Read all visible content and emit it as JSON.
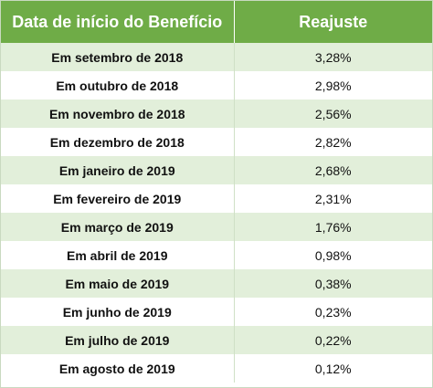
{
  "header": {
    "date_label": "Data de início do Benefício",
    "reajuste_label": "Reajuste"
  },
  "colors": {
    "header_bg": "#6fac47",
    "stripe_bg": "#e2efda"
  },
  "rows": [
    {
      "date": "Em setembro de 2018",
      "value": "3,28%"
    },
    {
      "date": "Em outubro de 2018",
      "value": "2,98%"
    },
    {
      "date": "Em novembro de 2018",
      "value": "2,56%"
    },
    {
      "date": "Em dezembro de 2018",
      "value": "2,82%"
    },
    {
      "date": "Em janeiro de 2019",
      "value": "2,68%"
    },
    {
      "date": "Em fevereiro de 2019",
      "value": "2,31%"
    },
    {
      "date": "Em março de 2019",
      "value": "1,76%"
    },
    {
      "date": "Em abril de 2019",
      "value": "0,98%"
    },
    {
      "date": "Em maio de 2019",
      "value": "0,38%"
    },
    {
      "date": "Em junho de 2019",
      "value": "0,23%"
    },
    {
      "date": "Em julho de 2019",
      "value": "0,22%"
    },
    {
      "date": "Em agosto de 2019",
      "value": "0,12%"
    }
  ]
}
